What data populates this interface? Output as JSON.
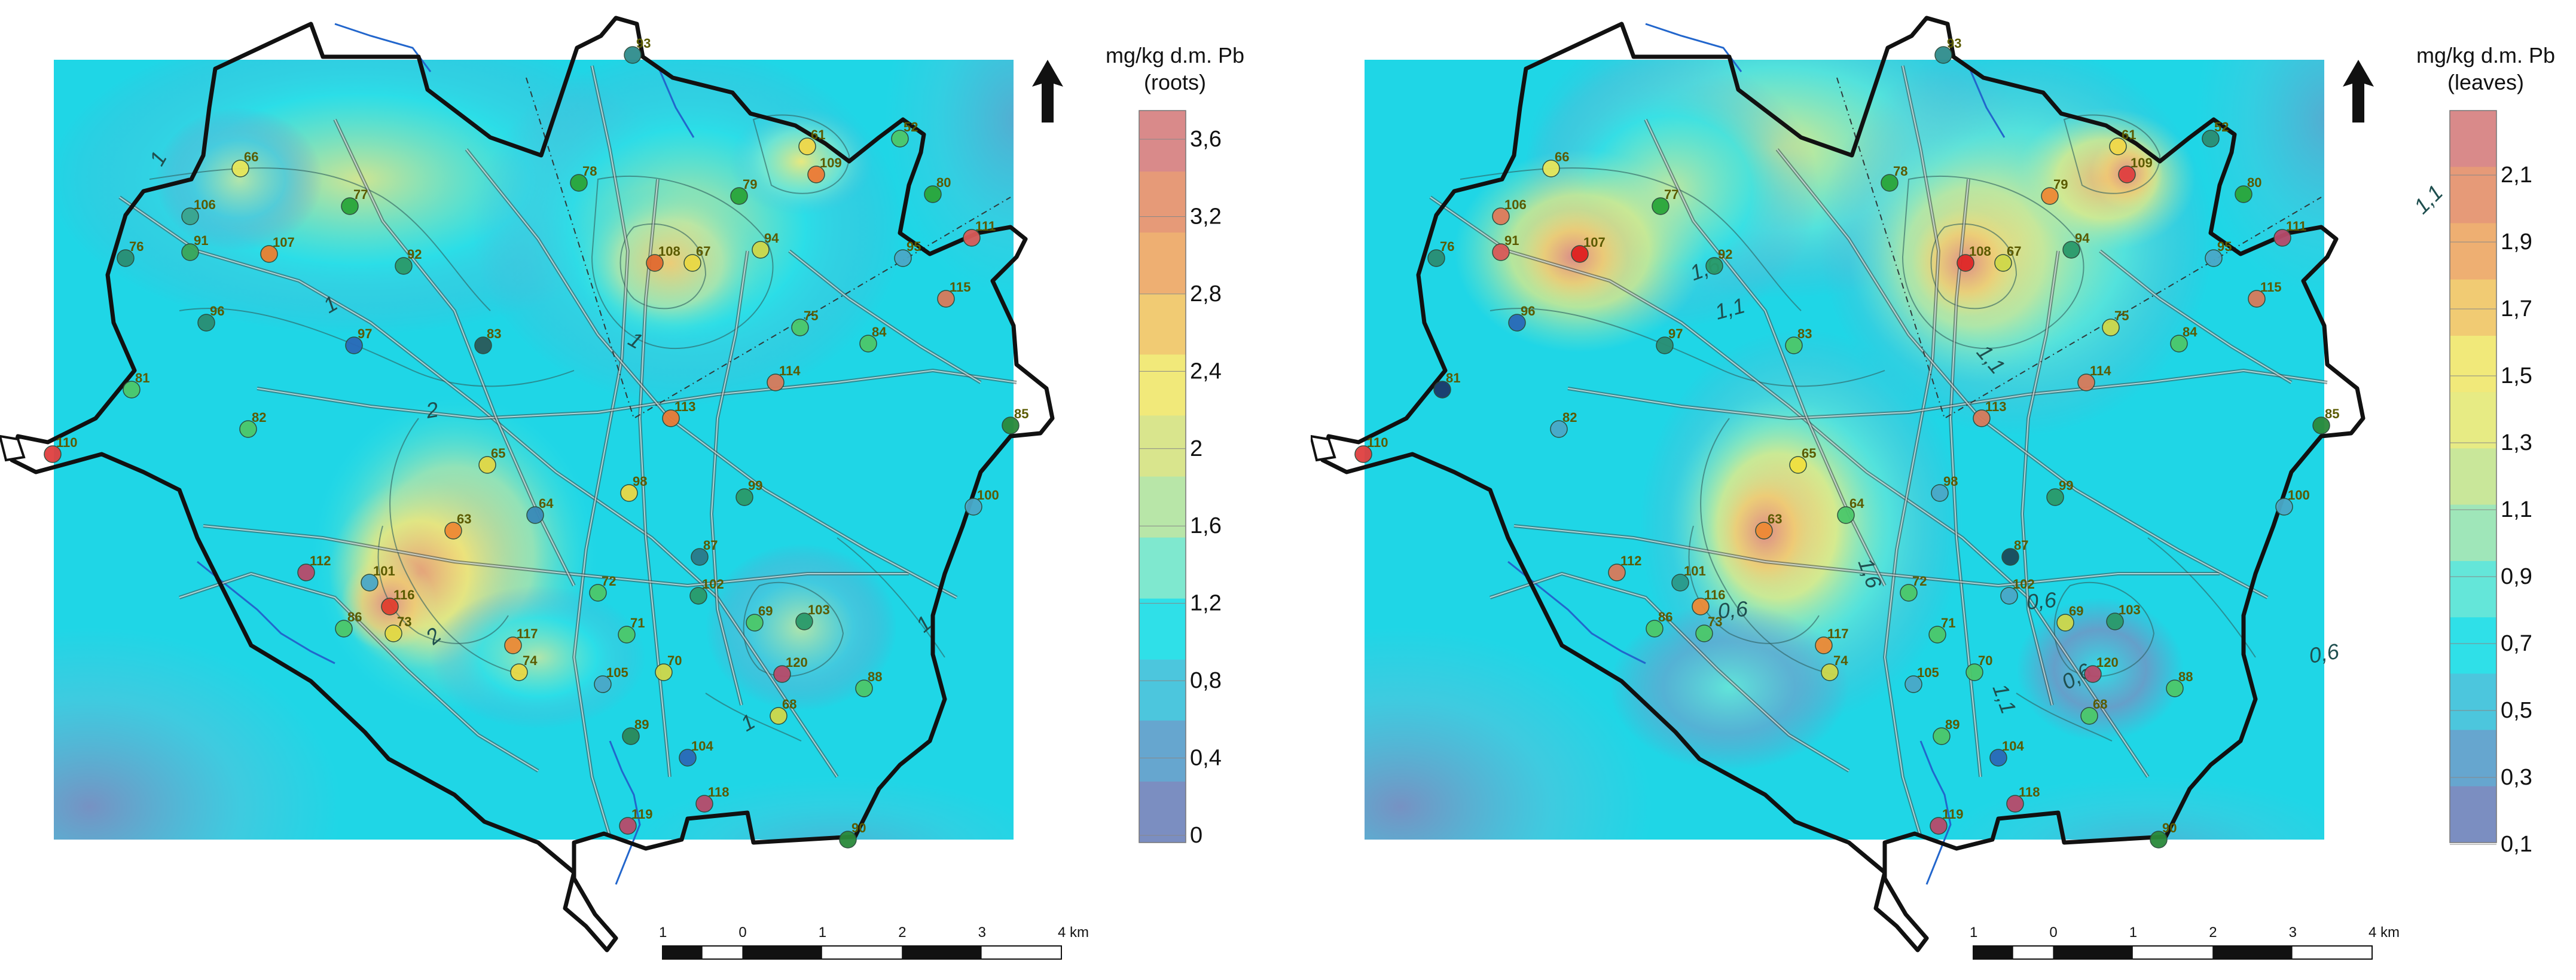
{
  "maps": [
    {
      "id": "roots",
      "legend_title_line1": "mg/kg d.m. Pb",
      "legend_title_line2": "(roots)",
      "legend_ticks": [
        "3,6",
        "3,2",
        "2,8",
        "2,4",
        "2",
        "1,6",
        "1,2",
        "0,8",
        "0,4",
        "0"
      ],
      "legend_colors": [
        "#d98a8a",
        "#e69a78",
        "#eeaf72",
        "#f1cb73",
        "#f1e97a",
        "#d9e58d",
        "#b8e6a8",
        "#7fe8cf",
        "#2fe0e8",
        "#4cc6dd",
        "#66a6cf",
        "#7b8ec1"
      ],
      "contour_labels": [
        "1",
        "1",
        "2",
        "1",
        "2",
        "1",
        "1"
      ],
      "stations": [
        {
          "id": "93",
          "c": "#2f8d8d"
        },
        {
          "id": "66",
          "c": "#e7e65a"
        },
        {
          "id": "77",
          "c": "#2aa63a"
        },
        {
          "id": "78",
          "c": "#2aa63a"
        },
        {
          "id": "61",
          "c": "#f0d84a"
        },
        {
          "id": "109",
          "c": "#ee7a35"
        },
        {
          "id": "52",
          "c": "#4cc86a"
        },
        {
          "id": "106",
          "c": "#3aa58e"
        },
        {
          "id": "79",
          "c": "#2aa63a"
        },
        {
          "id": "80",
          "c": "#2aa63a"
        },
        {
          "id": "76",
          "c": "#2a8e74"
        },
        {
          "id": "91",
          "c": "#3aa65a"
        },
        {
          "id": "107",
          "c": "#ea8030"
        },
        {
          "id": "92",
          "c": "#2a9a6a"
        },
        {
          "id": "108",
          "c": "#e26a30"
        },
        {
          "id": "67",
          "c": "#ead845"
        },
        {
          "id": "94",
          "c": "#cfd84a"
        },
        {
          "id": "111",
          "c": "#d95a58"
        },
        {
          "id": "95",
          "c": "#4aa8c8"
        },
        {
          "id": "96",
          "c": "#2a8e74"
        },
        {
          "id": "115",
          "c": "#d97a5a"
        },
        {
          "id": "97",
          "c": "#2a6ab8"
        },
        {
          "id": "83",
          "c": "#2a5a5a"
        },
        {
          "id": "75",
          "c": "#4cc86a"
        },
        {
          "id": "84",
          "c": "#4cc86a"
        },
        {
          "id": "114",
          "c": "#d97a5a"
        },
        {
          "id": "81",
          "c": "#4cc86a"
        },
        {
          "id": "113",
          "c": "#ea7a35"
        },
        {
          "id": "85",
          "c": "#2a8a3a"
        },
        {
          "id": "82",
          "c": "#4cc86a"
        },
        {
          "id": "110",
          "c": "#e04040"
        },
        {
          "id": "65",
          "c": "#e2d845"
        },
        {
          "id": "98",
          "c": "#ead845"
        },
        {
          "id": "99",
          "c": "#2a9a6a"
        },
        {
          "id": "100",
          "c": "#4aa8c8"
        },
        {
          "id": "64",
          "c": "#3a8ab8"
        },
        {
          "id": "63",
          "c": "#ee8a35"
        },
        {
          "id": "87",
          "c": "#2a7a8a"
        },
        {
          "id": "112",
          "c": "#b84a6a"
        },
        {
          "id": "101",
          "c": "#4aa8c8"
        },
        {
          "id": "72",
          "c": "#4cc86a"
        },
        {
          "id": "102",
          "c": "#2a9a6a"
        },
        {
          "id": "116",
          "c": "#e04030"
        },
        {
          "id": "69",
          "c": "#4cc86a"
        },
        {
          "id": "103",
          "c": "#2a9a6a"
        },
        {
          "id": "86",
          "c": "#4cc86a"
        },
        {
          "id": "73",
          "c": "#e2d845"
        },
        {
          "id": "71",
          "c": "#4cc86a"
        },
        {
          "id": "117",
          "c": "#ee8a35"
        },
        {
          "id": "74",
          "c": "#ead845"
        },
        {
          "id": "105",
          "c": "#4aa8c8"
        },
        {
          "id": "70",
          "c": "#cfd84a"
        },
        {
          "id": "120",
          "c": "#b84a6a"
        },
        {
          "id": "88",
          "c": "#4cc86a"
        },
        {
          "id": "68",
          "c": "#cfd84a"
        },
        {
          "id": "89",
          "c": "#2a8a5a"
        },
        {
          "id": "104",
          "c": "#2a6ab8"
        },
        {
          "id": "118",
          "c": "#b84a6a"
        },
        {
          "id": "119",
          "c": "#b84a6a"
        },
        {
          "id": "90",
          "c": "#2a8a3a"
        }
      ]
    },
    {
      "id": "leaves",
      "legend_title_line1": "mg/kg d.m. Pb",
      "legend_title_line2": "(leaves)",
      "legend_ticks": [
        "2,1",
        "1,9",
        "1,7",
        "1,5",
        "1,3",
        "1,1",
        "0,9",
        "0,7",
        "0,5",
        "0,3",
        "0,1"
      ],
      "legend_colors": [
        "#d98a8a",
        "#e69a78",
        "#eeaf72",
        "#f1cb73",
        "#f1e97a",
        "#e7eb84",
        "#c9e79a",
        "#9fe6b9",
        "#64e6d9",
        "#2fe0e8",
        "#4cc6dd",
        "#66a6cf",
        "#7b8ec1"
      ],
      "contour_labels": [
        "1,6",
        "1,1",
        "1,1",
        "1,6",
        "0,6",
        "0,6",
        "1,1",
        "0,6",
        "0,6",
        "1,1"
      ],
      "stations": [
        {
          "id": "93",
          "c": "#2f8d8d"
        },
        {
          "id": "66",
          "c": "#e7e65a"
        },
        {
          "id": "77",
          "c": "#2aa63a"
        },
        {
          "id": "78",
          "c": "#2aa63a"
        },
        {
          "id": "61",
          "c": "#f0d84a"
        },
        {
          "id": "109",
          "c": "#e04040"
        },
        {
          "id": "52",
          "c": "#2a8e74"
        },
        {
          "id": "106",
          "c": "#e07a5a"
        },
        {
          "id": "79",
          "c": "#ee8a35"
        },
        {
          "id": "80",
          "c": "#2aa63a"
        },
        {
          "id": "76",
          "c": "#2a8e74"
        },
        {
          "id": "91",
          "c": "#d95a58"
        },
        {
          "id": "107",
          "c": "#e02020"
        },
        {
          "id": "92",
          "c": "#2a9a6a"
        },
        {
          "id": "108",
          "c": "#e02828"
        },
        {
          "id": "67",
          "c": "#cfd84a"
        },
        {
          "id": "94",
          "c": "#2a9a6a"
        },
        {
          "id": "111",
          "c": "#b84a6a"
        },
        {
          "id": "95",
          "c": "#4aa8c8"
        },
        {
          "id": "96",
          "c": "#2a6ab8"
        },
        {
          "id": "115",
          "c": "#d97a5a"
        },
        {
          "id": "97",
          "c": "#2a8e74"
        },
        {
          "id": "83",
          "c": "#4cc86a"
        },
        {
          "id": "75",
          "c": "#cfd84a"
        },
        {
          "id": "84",
          "c": "#4cc86a"
        },
        {
          "id": "114",
          "c": "#d97a5a"
        },
        {
          "id": "81",
          "c": "#1a3a6a"
        },
        {
          "id": "113",
          "c": "#d97a5a"
        },
        {
          "id": "85",
          "c": "#2a8a3a"
        },
        {
          "id": "82",
          "c": "#4aa8c8"
        },
        {
          "id": "110",
          "c": "#e04040"
        },
        {
          "id": "65",
          "c": "#f0e040"
        },
        {
          "id": "98",
          "c": "#4aa8c8"
        },
        {
          "id": "99",
          "c": "#2a9a6a"
        },
        {
          "id": "100",
          "c": "#4aa8c8"
        },
        {
          "id": "64",
          "c": "#4cc86a"
        },
        {
          "id": "63",
          "c": "#ee8a35"
        },
        {
          "id": "87",
          "c": "#1a4a5a"
        },
        {
          "id": "112",
          "c": "#d97a5a"
        },
        {
          "id": "101",
          "c": "#2a9a8a"
        },
        {
          "id": "72",
          "c": "#4cc86a"
        },
        {
          "id": "102",
          "c": "#4aa8c8"
        },
        {
          "id": "116",
          "c": "#ee8a35"
        },
        {
          "id": "69",
          "c": "#cfd84a"
        },
        {
          "id": "103",
          "c": "#2a9a6a"
        },
        {
          "id": "86",
          "c": "#4cc86a"
        },
        {
          "id": "73",
          "c": "#4cc86a"
        },
        {
          "id": "71",
          "c": "#4cc86a"
        },
        {
          "id": "117",
          "c": "#ee8a35"
        },
        {
          "id": "74",
          "c": "#cfd84a"
        },
        {
          "id": "105",
          "c": "#4aa8c8"
        },
        {
          "id": "70",
          "c": "#4cc86a"
        },
        {
          "id": "120",
          "c": "#b84a6a"
        },
        {
          "id": "88",
          "c": "#4cc86a"
        },
        {
          "id": "68",
          "c": "#4cc86a"
        },
        {
          "id": "89",
          "c": "#4cc86a"
        },
        {
          "id": "104",
          "c": "#2a6ab8"
        },
        {
          "id": "118",
          "c": "#b84a6a"
        },
        {
          "id": "119",
          "c": "#b84a6a"
        },
        {
          "id": "90",
          "c": "#2a8a3a"
        }
      ]
    }
  ],
  "scale_bar": {
    "labels": [
      "1",
      "0",
      "1",
      "2",
      "3",
      "4 km"
    ]
  }
}
